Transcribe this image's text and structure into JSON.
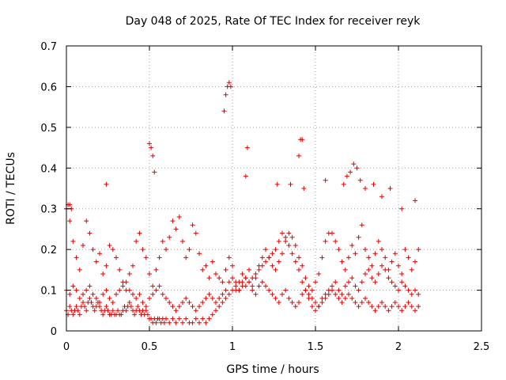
{
  "chart_data": {
    "type": "scatter",
    "title": "Day 048 of 2025, Rate Of TEC Index for receiver reyk",
    "xlabel": "GPS time / hours",
    "ylabel": "ROTI / TECUs",
    "xlim": [
      0,
      2.5
    ],
    "ylim": [
      0,
      0.7
    ],
    "xticks": [
      "0",
      "0.5",
      "1",
      "1.5",
      "2",
      "2.5"
    ],
    "yticks": [
      "0",
      "0.1",
      "0.2",
      "0.3",
      "0.4",
      "0.5",
      "0.6",
      "0.7"
    ],
    "grid": true,
    "marker": "+",
    "color": "#e00000",
    "series": [
      {
        "x": [
          0.0,
          0.01,
          0.02,
          0.03,
          0.04,
          0.05,
          0.06,
          0.07,
          0.08,
          0.09,
          0.1,
          0.11,
          0.12,
          0.13,
          0.14,
          0.15,
          0.16,
          0.17,
          0.18,
          0.19,
          0.2,
          0.21,
          0.22,
          0.23,
          0.24,
          0.25,
          0.26,
          0.27,
          0.28,
          0.29,
          0.3,
          0.31,
          0.32,
          0.33,
          0.34,
          0.35,
          0.36,
          0.37,
          0.38,
          0.39,
          0.4,
          0.41,
          0.42,
          0.43,
          0.44,
          0.45,
          0.46,
          0.47,
          0.48,
          0.49,
          0.5,
          0.51,
          0.52,
          0.53,
          0.54,
          0.55,
          0.56,
          0.57,
          0.58,
          0.59,
          0.6,
          0.62,
          0.64,
          0.66,
          0.68,
          0.7,
          0.72,
          0.74,
          0.76,
          0.78,
          0.8,
          0.82,
          0.84,
          0.86,
          0.88,
          0.9,
          0.92,
          0.94,
          0.96,
          0.98,
          1.0,
          1.02,
          1.04,
          1.06,
          1.08,
          1.1,
          1.12,
          1.14,
          1.16,
          1.18,
          1.2,
          1.22,
          1.24,
          1.26,
          1.28,
          1.3,
          1.32,
          1.34,
          1.36,
          1.38,
          1.4,
          1.42,
          1.44,
          1.46,
          1.48,
          1.5,
          1.52,
          1.54,
          1.56,
          1.58,
          1.6,
          1.62,
          1.64,
          1.66,
          1.68,
          1.7,
          1.72,
          1.74,
          1.76,
          1.78,
          1.8,
          1.82,
          1.84,
          1.86,
          1.88,
          1.9,
          1.92,
          1.94,
          1.96,
          1.98,
          2.0,
          2.02,
          2.04,
          2.06,
          2.08,
          2.1,
          2.12
        ],
        "y": [
          0.05,
          0.04,
          0.06,
          0.05,
          0.04,
          0.05,
          0.06,
          0.05,
          0.04,
          0.06,
          0.07,
          0.06,
          0.05,
          0.07,
          0.08,
          0.07,
          0.06,
          0.05,
          0.06,
          0.07,
          0.06,
          0.05,
          0.04,
          0.05,
          0.06,
          0.05,
          0.04,
          0.04,
          0.05,
          0.04,
          0.04,
          0.05,
          0.04,
          0.04,
          0.05,
          0.06,
          0.05,
          0.06,
          0.07,
          0.06,
          0.05,
          0.04,
          0.05,
          0.06,
          0.05,
          0.04,
          0.05,
          0.04,
          0.05,
          0.04,
          0.03,
          0.03,
          0.02,
          0.03,
          0.02,
          0.03,
          0.03,
          0.02,
          0.03,
          0.02,
          0.03,
          0.02,
          0.03,
          0.02,
          0.03,
          0.02,
          0.03,
          0.02,
          0.02,
          0.03,
          0.02,
          0.03,
          0.02,
          0.03,
          0.04,
          0.05,
          0.06,
          0.07,
          0.08,
          0.09,
          0.1,
          0.11,
          0.1,
          0.12,
          0.11,
          0.12,
          0.13,
          0.14,
          0.15,
          0.16,
          0.17,
          0.18,
          0.19,
          0.2,
          0.22,
          0.24,
          0.23,
          0.21,
          0.19,
          0.17,
          0.15,
          0.12,
          0.1,
          0.08,
          0.06,
          0.05,
          0.06,
          0.07,
          0.08,
          0.09,
          0.1,
          0.09,
          0.08,
          0.07,
          0.08,
          0.09,
          0.08,
          0.07,
          0.06,
          0.07,
          0.08,
          0.07,
          0.06,
          0.05,
          0.06,
          0.07,
          0.06,
          0.05,
          0.06,
          0.07,
          0.06,
          0.05,
          0.06,
          0.07,
          0.06,
          0.05,
          0.06
        ]
      },
      {
        "x": [
          0.0,
          0.02,
          0.04,
          0.06,
          0.08,
          0.1,
          0.12,
          0.14,
          0.16,
          0.18,
          0.2,
          0.22,
          0.24,
          0.26,
          0.28,
          0.3,
          0.32,
          0.34,
          0.36,
          0.38,
          0.4,
          0.42,
          0.44,
          0.46,
          0.48,
          0.5,
          0.52,
          0.54,
          0.56,
          0.58,
          0.6,
          0.62,
          0.64,
          0.66,
          0.68,
          0.7,
          0.72,
          0.74,
          0.76,
          0.78,
          0.8,
          0.82,
          0.84,
          0.86,
          0.88,
          0.9,
          0.92,
          0.94,
          0.96,
          0.98,
          1.0,
          1.02,
          1.04,
          1.06,
          1.08,
          1.1,
          1.12,
          1.14,
          1.16,
          1.18,
          1.2,
          1.22,
          1.24,
          1.26,
          1.28,
          1.3,
          1.32,
          1.34,
          1.36,
          1.38,
          1.4,
          1.42,
          1.44,
          1.46,
          1.48,
          1.5,
          1.52,
          1.54,
          1.56,
          1.58,
          1.6,
          1.62,
          1.64,
          1.66,
          1.68,
          1.7,
          1.72,
          1.74,
          1.76,
          1.78,
          1.8,
          1.82,
          1.84,
          1.86,
          1.88,
          1.9,
          1.92,
          1.94,
          1.96,
          1.98,
          2.0,
          2.02,
          2.04,
          2.06,
          2.08,
          2.1,
          2.12
        ],
        "y": [
          0.1,
          0.09,
          0.11,
          0.1,
          0.08,
          0.09,
          0.1,
          0.11,
          0.09,
          0.08,
          0.07,
          0.09,
          0.1,
          0.08,
          0.07,
          0.09,
          0.1,
          0.11,
          0.12,
          0.1,
          0.09,
          0.08,
          0.09,
          0.07,
          0.06,
          0.08,
          0.09,
          0.1,
          0.11,
          0.09,
          0.08,
          0.07,
          0.06,
          0.05,
          0.06,
          0.07,
          0.08,
          0.07,
          0.06,
          0.05,
          0.06,
          0.07,
          0.08,
          0.09,
          0.08,
          0.07,
          0.08,
          0.09,
          0.1,
          0.12,
          0.13,
          0.12,
          0.1,
          0.11,
          0.13,
          0.12,
          0.1,
          0.09,
          0.11,
          0.12,
          0.11,
          0.1,
          0.09,
          0.08,
          0.07,
          0.09,
          0.1,
          0.08,
          0.07,
          0.06,
          0.07,
          0.09,
          0.1,
          0.09,
          0.08,
          0.07,
          0.06,
          0.08,
          0.09,
          0.1,
          0.11,
          0.12,
          0.1,
          0.09,
          0.11,
          0.12,
          0.13,
          0.11,
          0.1,
          0.12,
          0.14,
          0.15,
          0.13,
          0.12,
          0.14,
          0.16,
          0.15,
          0.13,
          0.12,
          0.11,
          0.1,
          0.12,
          0.11,
          0.1,
          0.09,
          0.1,
          0.09
        ]
      },
      {
        "x": [
          0.0,
          0.02,
          0.04,
          0.06,
          0.08,
          0.1,
          0.12,
          0.14,
          0.16,
          0.18,
          0.2,
          0.22,
          0.24,
          0.26,
          0.28,
          0.3,
          0.32,
          0.34,
          0.36,
          0.38,
          0.4,
          0.42,
          0.44,
          0.46,
          0.48,
          0.5,
          0.52,
          0.54,
          0.56,
          0.58,
          0.6,
          0.62,
          0.64,
          0.66,
          0.68,
          0.7,
          0.72,
          0.74,
          0.76,
          0.78,
          0.8,
          0.82,
          0.84,
          0.86,
          0.88,
          0.9,
          0.92,
          0.94,
          0.96,
          0.98,
          1.0,
          1.02,
          1.04,
          1.06,
          1.08,
          1.1,
          1.12,
          1.14,
          1.16,
          1.18,
          1.2,
          1.22,
          1.24,
          1.26,
          1.28,
          1.3,
          1.32,
          1.34,
          1.36,
          1.38,
          1.4,
          1.42,
          1.44,
          1.46,
          1.48,
          1.5,
          1.52,
          1.54,
          1.56,
          1.58,
          1.6,
          1.62,
          1.64,
          1.66,
          1.68,
          1.7,
          1.72,
          1.74,
          1.76,
          1.78,
          1.8,
          1.82,
          1.84,
          1.86,
          1.88,
          1.9,
          1.92,
          1.94,
          1.96,
          1.98,
          2.0,
          2.02,
          2.04,
          2.06,
          2.08,
          2.1,
          2.12
        ],
        "y": [
          0.3,
          0.27,
          0.22,
          0.18,
          0.15,
          0.21,
          0.27,
          0.24,
          0.2,
          0.17,
          0.19,
          0.14,
          0.16,
          0.21,
          0.2,
          0.18,
          0.15,
          0.12,
          0.1,
          0.14,
          0.16,
          0.22,
          0.24,
          0.2,
          0.18,
          0.14,
          0.11,
          0.15,
          0.18,
          0.22,
          0.2,
          0.23,
          0.27,
          0.25,
          0.28,
          0.22,
          0.18,
          0.2,
          0.26,
          0.24,
          0.19,
          0.15,
          0.16,
          0.13,
          0.17,
          0.14,
          0.13,
          0.12,
          0.15,
          0.18,
          0.16,
          0.1,
          0.12,
          0.14,
          0.13,
          0.15,
          0.11,
          0.13,
          0.16,
          0.18,
          0.2,
          0.18,
          0.16,
          0.15,
          0.17,
          0.19,
          0.22,
          0.24,
          0.23,
          0.21,
          0.18,
          0.16,
          0.13,
          0.11,
          0.1,
          0.12,
          0.14,
          0.18,
          0.22,
          0.24,
          0.24,
          0.22,
          0.2,
          0.17,
          0.15,
          0.18,
          0.21,
          0.19,
          0.23,
          0.26,
          0.2,
          0.18,
          0.16,
          0.19,
          0.22,
          0.2,
          0.18,
          0.15,
          0.17,
          0.19,
          0.16,
          0.14,
          0.2,
          0.18,
          0.15,
          0.17,
          0.2
        ]
      },
      {
        "x": [
          0.0,
          0.01,
          0.02,
          0.03,
          0.24,
          0.5,
          0.51,
          0.52,
          0.53,
          0.95,
          0.96,
          0.97,
          0.98,
          0.99,
          1.08,
          1.09,
          1.27,
          1.35,
          1.4,
          1.41,
          1.42,
          1.43,
          1.56,
          1.67,
          1.69,
          1.71,
          1.73,
          1.75,
          1.77,
          1.8,
          1.85,
          1.9,
          1.95,
          2.02,
          2.1
        ],
        "y": [
          0.3,
          0.31,
          0.31,
          0.3,
          0.36,
          0.46,
          0.45,
          0.43,
          0.39,
          0.54,
          0.58,
          0.6,
          0.61,
          0.6,
          0.38,
          0.45,
          0.36,
          0.36,
          0.43,
          0.47,
          0.47,
          0.35,
          0.37,
          0.36,
          0.38,
          0.39,
          0.41,
          0.4,
          0.37,
          0.35,
          0.36,
          0.33,
          0.35,
          0.3,
          0.32
        ]
      }
    ]
  }
}
